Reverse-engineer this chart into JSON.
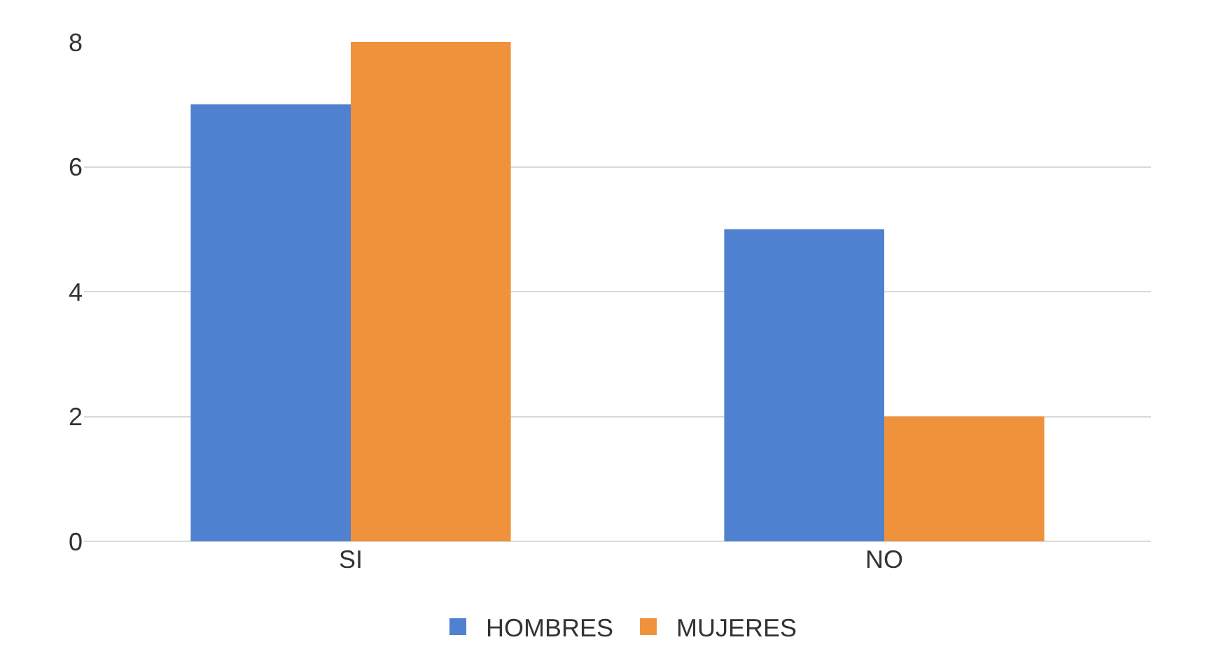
{
  "chart_data": {
    "type": "bar",
    "categories": [
      "SI",
      "NO"
    ],
    "series": [
      {
        "name": "HOMBRES",
        "color": "#4f81d0",
        "values": [
          7,
          5
        ]
      },
      {
        "name": "MUJERES",
        "color": "#f0913b",
        "values": [
          8,
          2
        ]
      }
    ],
    "ylim": [
      0,
      8
    ],
    "yticks": [
      0,
      2,
      4,
      6,
      8
    ],
    "grid": "y",
    "legend": "bottom"
  }
}
